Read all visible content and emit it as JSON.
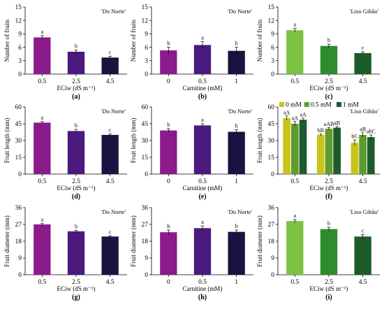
{
  "colors": {
    "purple": "#8B1A8B",
    "violet": "#4A1A7E",
    "navy": "#1A1240",
    "green_light": "#7CC242",
    "green_mid": "#2E8B2E",
    "green_dark": "#1A5C2A",
    "olive_yellow": "#C9C41A",
    "olive_green": "#5E9C2C",
    "forest": "#2A6A3A"
  },
  "legend": {
    "items": [
      {
        "label": "0 mM",
        "color": "#C9C41A"
      },
      {
        "label": "0.5 mM",
        "color": "#5E9C2C"
      },
      {
        "label": "1 mM",
        "color": "#1D5A2E"
      }
    ]
  },
  "chart_data": [
    {
      "id": "a",
      "type": "bar",
      "title": "'Do Norte'",
      "letter": "(a)",
      "xlabel": "ECiw (dS m⁻¹)",
      "ylabel": "Number of fruits",
      "ylim": [
        0,
        15
      ],
      "yticks": [
        0,
        3,
        6,
        9,
        12,
        15
      ],
      "categories": [
        "0.5",
        "2.5",
        "4.5"
      ],
      "values": [
        8.2,
        5.0,
        3.7
      ],
      "errors": [
        0.4,
        0.4,
        0.3
      ],
      "labels": [
        "a",
        "b",
        "c"
      ],
      "colors": [
        "#8B1A8B",
        "#4A1A7E",
        "#1A1240"
      ]
    },
    {
      "id": "b",
      "type": "bar",
      "title": "'Do Norte'",
      "letter": "(b)",
      "xlabel": "Carnitine (mM)",
      "ylabel": "Number of fruits",
      "ylim": [
        0,
        15
      ],
      "yticks": [
        0,
        3,
        6,
        9,
        12,
        15
      ],
      "categories": [
        "0",
        "0.5",
        "1"
      ],
      "values": [
        5.3,
        6.5,
        5.2
      ],
      "errors": [
        0.7,
        0.8,
        0.8
      ],
      "labels": [
        "b",
        "a",
        "b"
      ],
      "colors": [
        "#8B1A8B",
        "#4A1A7E",
        "#1A1240"
      ]
    },
    {
      "id": "c",
      "type": "bar",
      "title": "'Liso Gibão'",
      "letter": "(c)",
      "xlabel": "ECiw (dS m⁻¹)",
      "ylabel": "Number of fruits",
      "ylim": [
        0,
        15
      ],
      "yticks": [
        0,
        3,
        6,
        9,
        12,
        15
      ],
      "categories": [
        "0.5",
        "2.5",
        "4.5"
      ],
      "values": [
        9.8,
        6.3,
        4.7
      ],
      "errors": [
        0.4,
        0.4,
        0.3
      ],
      "labels": [
        "a",
        "b",
        "c"
      ],
      "colors": [
        "#7CC242",
        "#2E8B2E",
        "#1A5C2A"
      ]
    },
    {
      "id": "d",
      "type": "bar",
      "title": "'Do Norte'",
      "letter": "(d)",
      "xlabel": "ECiw (dS m⁻¹)",
      "ylabel": "Fruit length (mm)",
      "ylim": [
        0,
        60
      ],
      "yticks": [
        0,
        15,
        30,
        45,
        60
      ],
      "categories": [
        "0.5",
        "2.5",
        "4.5"
      ],
      "values": [
        46.0,
        38.5,
        35.0
      ],
      "errors": [
        1.0,
        1.5,
        0.8
      ],
      "labels": [
        "a",
        "b",
        "c"
      ],
      "colors": [
        "#8B1A8B",
        "#4A1A7E",
        "#1A1240"
      ]
    },
    {
      "id": "e",
      "type": "bar",
      "title": "'Do Norte'",
      "letter": "(e)",
      "xlabel": "Carnitine (mM)",
      "ylabel": "Fruit length (mm)",
      "ylim": [
        0,
        60
      ],
      "yticks": [
        0,
        15,
        30,
        45,
        60
      ],
      "categories": [
        "0",
        "0.5",
        "1"
      ],
      "values": [
        39.0,
        43.5,
        37.8
      ],
      "errors": [
        1.5,
        1.5,
        1.8
      ],
      "labels": [
        "b",
        "a",
        "b"
      ],
      "colors": [
        "#8B1A8B",
        "#4A1A7E",
        "#1A1240"
      ]
    },
    {
      "id": "f",
      "type": "grouped-bar",
      "title": "'Liso Gibão'",
      "letter": "(f)",
      "xlabel": "ECiw (dS m⁻¹)",
      "ylabel": "Fruit length (mm)",
      "ylim": [
        0,
        60
      ],
      "yticks": [
        0,
        15,
        30,
        45,
        60
      ],
      "categories": [
        "0.5",
        "2.5",
        "4.5"
      ],
      "series": [
        {
          "name": "0 mM",
          "values": [
            50.0,
            35.0,
            28.0
          ],
          "errors": [
            2.0,
            1.0,
            2.5
          ],
          "labels": [
            "aA",
            "bB",
            "bC"
          ],
          "color": "#C9C41A"
        },
        {
          "name": "0.5 mM",
          "values": [
            45.0,
            40.5,
            35.0
          ],
          "errors": [
            2.0,
            1.0,
            2.0
          ],
          "labels": [
            "aA",
            "aAB",
            "aB"
          ],
          "color": "#5E9C2C"
        },
        {
          "name": "1 mM",
          "values": [
            48.5,
            41.5,
            33.0
          ],
          "errors": [
            1.5,
            1.0,
            2.0
          ],
          "labels": [
            "aA",
            "aB",
            "abC"
          ],
          "color": "#1D5A2E"
        }
      ]
    },
    {
      "id": "g",
      "type": "bar",
      "title": "'Do Norte'",
      "letter": "(g)",
      "xlabel": "ECiw (dS m⁻¹)",
      "ylabel": "Fruit diameter (mm)",
      "ylim": [
        0,
        36
      ],
      "yticks": [
        0,
        9,
        18,
        27,
        36
      ],
      "categories": [
        "0.5",
        "2.5",
        "4.5"
      ],
      "values": [
        27.0,
        23.3,
        20.5
      ],
      "errors": [
        0.5,
        0.6,
        0.4
      ],
      "labels": [
        "a",
        "b",
        "c"
      ],
      "colors": [
        "#8B1A8B",
        "#4A1A7E",
        "#1A1240"
      ]
    },
    {
      "id": "h",
      "type": "bar",
      "title": "'Do Norte'",
      "letter": "(h)",
      "xlabel": "Carnitine (mM)",
      "ylabel": "Fruit diameter (mm)",
      "ylim": [
        0,
        36
      ],
      "yticks": [
        0,
        9,
        18,
        27,
        36
      ],
      "categories": [
        "0",
        "0.5",
        "1"
      ],
      "values": [
        22.8,
        25.0,
        23.0
      ],
      "errors": [
        1.2,
        1.2,
        1.0
      ],
      "labels": [
        "b",
        "a",
        "b"
      ],
      "colors": [
        "#8B1A8B",
        "#4A1A7E",
        "#1A1240"
      ]
    },
    {
      "id": "i",
      "type": "bar",
      "title": "'Liso Gibão'",
      "letter": "(i)",
      "xlabel": "ECiw (dS m⁻¹)",
      "ylabel": "Fruit diameter (mm)",
      "ylim": [
        0,
        36
      ],
      "yticks": [
        0,
        9,
        18,
        27,
        36
      ],
      "categories": [
        "0.5",
        "2.5",
        "4.5"
      ],
      "values": [
        28.8,
        24.5,
        20.5
      ],
      "errors": [
        0.8,
        1.0,
        1.0
      ],
      "labels": [
        "a",
        "b",
        "c"
      ],
      "colors": [
        "#7CC242",
        "#2E8B2E",
        "#1A5C2A"
      ]
    }
  ]
}
